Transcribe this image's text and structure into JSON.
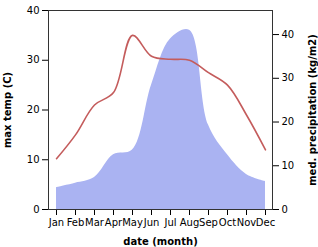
{
  "chart_data": {
    "type": "line",
    "x_label": "date (month)",
    "categories": [
      "Jan",
      "Feb",
      "Mar",
      "Apr",
      "May",
      "Jun",
      "Jul",
      "Aug",
      "Sep",
      "Oct",
      "Nov",
      "Dec"
    ],
    "series": [
      {
        "name": "med. precipitation (kg/m2)",
        "type": "area",
        "axis": "y2",
        "color": "#aab3f2",
        "values": [
          5,
          6,
          7.3,
          12.5,
          13.6,
          28.4,
          39,
          41,
          19.3,
          12.5,
          8,
          6.4
        ]
      },
      {
        "name": "max temp (C)",
        "type": "line",
        "axis": "y",
        "color": "#c45c5c",
        "values": [
          10.2,
          15,
          21,
          23.5,
          35,
          30.8,
          30.2,
          30,
          27.5,
          25,
          19,
          12
        ]
      }
    ],
    "ylim": [
      0,
      40
    ],
    "yticks": [
      0,
      10,
      20,
      30,
      40
    ],
    "y2lim": [
      0,
      45.5
    ],
    "y2ticks": [
      0,
      10,
      20,
      30,
      40
    ],
    "grid": false
  }
}
